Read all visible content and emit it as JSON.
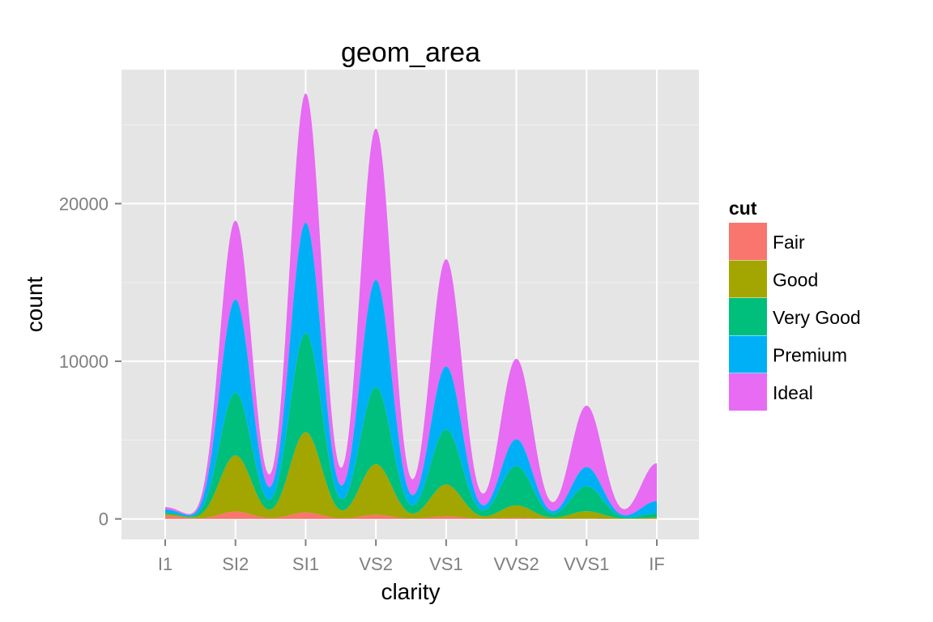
{
  "chart_data": {
    "type": "area",
    "stacked": true,
    "title": "geom_area",
    "xlabel": "clarity",
    "ylabel": "count",
    "categories": [
      "I1",
      "SI2",
      "SI1",
      "VS2",
      "VS1",
      "VVS2",
      "VVS1",
      "IF"
    ],
    "yticks": [
      0,
      10000,
      20000
    ],
    "ylim": [
      -1300,
      28500
    ],
    "grid": true,
    "legend": {
      "title": "cut",
      "position": "right"
    },
    "series": [
      {
        "name": "Fair",
        "color": "#F8766D",
        "values": [
          210,
          470,
          410,
          260,
          170,
          70,
          17,
          9
        ]
      },
      {
        "name": "Good",
        "color": "#A3A500",
        "values": [
          96,
          3560,
          5090,
          3210,
          2010,
          790,
          470,
          70
        ]
      },
      {
        "name": "Very Good",
        "color": "#00BF7D",
        "values": [
          84,
          4000,
          6300,
          4900,
          3500,
          2500,
          1600,
          270
        ]
      },
      {
        "name": "Premium",
        "color": "#00B0F6",
        "values": [
          210,
          5900,
          7000,
          6800,
          4000,
          1700,
          1200,
          780
        ]
      },
      {
        "name": "Ideal",
        "color": "#E76BF3",
        "values": [
          150,
          5000,
          8200,
          9600,
          6800,
          5100,
          3900,
          2400
        ]
      }
    ]
  }
}
